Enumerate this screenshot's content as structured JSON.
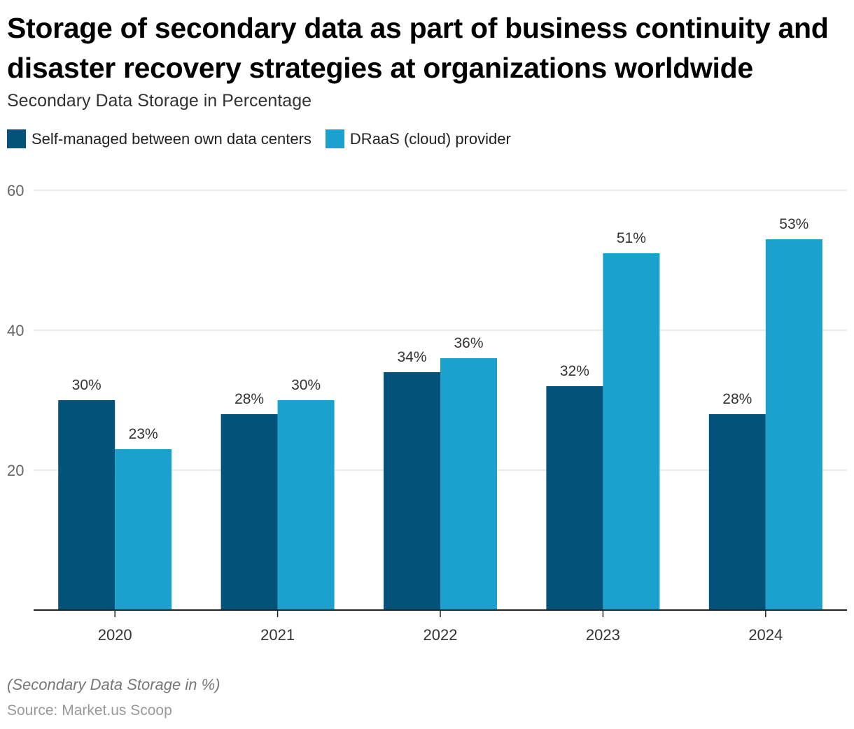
{
  "chart_data": {
    "type": "bar",
    "title": "Storage of secondary data as part of business continuity and disaster recovery strategies at organizations worldwide",
    "subtitle": "Secondary Data Storage in Percentage",
    "xlabel": "",
    "ylabel": "",
    "categories": [
      "2020",
      "2021",
      "2022",
      "2023",
      "2024"
    ],
    "series": [
      {
        "name": "Self-managed between own data centers",
        "color": "#02527a",
        "values": [
          30,
          28,
          34,
          32,
          28
        ]
      },
      {
        "name": "DRaaS (cloud) provider",
        "color": "#1aa1cd",
        "values": [
          23,
          30,
          36,
          51,
          53
        ]
      }
    ],
    "ylim": [
      0,
      60
    ],
    "yticks": [
      20,
      40,
      60
    ],
    "value_suffix": "%",
    "grid": true,
    "legend": "top-left",
    "note": "(Secondary Data Storage in %)",
    "source": "Source: Market.us Scoop"
  }
}
